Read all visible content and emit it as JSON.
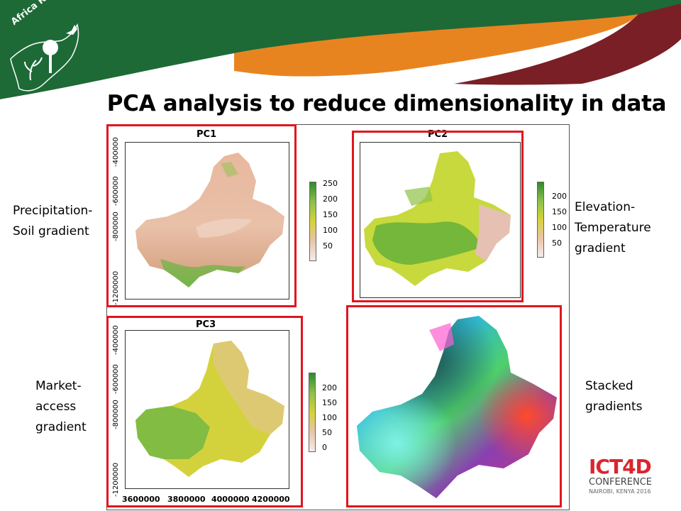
{
  "header": {
    "logo_text": "Africa RISING",
    "colors": {
      "green": "#1d6a36",
      "orange": "#e8841f",
      "maroon": "#7a1f25"
    }
  },
  "slide": {
    "title": "PCA analysis to reduce dimensionality in data"
  },
  "labels": {
    "pc1_line1": "Precipitation-",
    "pc1_line2": "Soil gradient",
    "pc2_line1": "Elevation-",
    "pc2_line2": "Temperature",
    "pc2_line3": "gradient",
    "pc3_line1": "Market-",
    "pc3_line2": "access",
    "pc3_line3": "gradient",
    "stack_line1": "Stacked",
    "stack_line2": "gradients"
  },
  "plots": {
    "pc1": {
      "title": "PC1",
      "yticks": [
        "-400000",
        "-600000",
        "-800000",
        "-1200000"
      ],
      "legend": [
        "250",
        "200",
        "150",
        "100",
        "50"
      ]
    },
    "pc2": {
      "title": "PC2",
      "legend": [
        "200",
        "150",
        "100",
        "50"
      ]
    },
    "pc3": {
      "title": "PC3",
      "yticks": [
        "-400000",
        "-600000",
        "-800000",
        "-1200000"
      ],
      "xticks": [
        "3600000",
        "3800000",
        "4000000",
        "4200000"
      ],
      "legend": [
        "200",
        "150",
        "100",
        "50",
        "0"
      ]
    }
  },
  "footer_logo": {
    "main": "ICT4D",
    "sub": "CONFERENCE",
    "place": "NAIROBI, KENYA 2016"
  }
}
